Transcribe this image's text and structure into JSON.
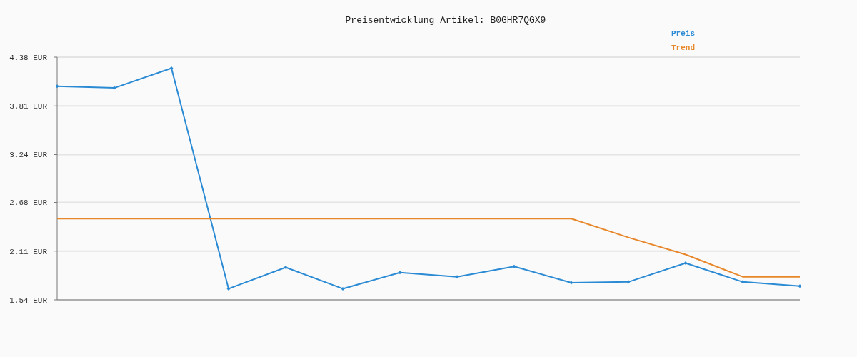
{
  "chart_data": {
    "type": "line",
    "title": "Preisentwicklung Artikel: B0GHR7QGX9",
    "categories": [
      null,
      null,
      null,
      null,
      null,
      null,
      null,
      null,
      null,
      null,
      null,
      null,
      null,
      null
    ],
    "series": [
      {
        "name": "Preis",
        "color": "#2a8ad4",
        "marker": "diamond",
        "values": [
          4.04,
          4.02,
          4.25,
          1.67,
          1.92,
          1.67,
          1.86,
          1.81,
          1.93,
          1.74,
          1.75,
          1.97,
          1.75,
          1.7
        ]
      },
      {
        "name": "Trend",
        "color": "#e8872a",
        "marker": "none",
        "values": [
          2.49,
          2.49,
          2.49,
          2.49,
          2.49,
          2.49,
          2.49,
          2.49,
          2.49,
          2.49,
          2.27,
          2.07,
          1.81,
          1.81
        ]
      }
    ],
    "ylim": [
      1.54,
      4.38
    ],
    "yticks": [
      {
        "value": 1.54,
        "label": "1.54 EUR"
      },
      {
        "value": 2.11,
        "label": "2.11 EUR"
      },
      {
        "value": 2.68,
        "label": "2.68 EUR"
      },
      {
        "value": 3.24,
        "label": "3.24 EUR"
      },
      {
        "value": 3.81,
        "label": "3.81 EUR"
      },
      {
        "value": 4.38,
        "label": "4.38 EUR"
      }
    ],
    "grid": "y",
    "legend": "top right"
  }
}
